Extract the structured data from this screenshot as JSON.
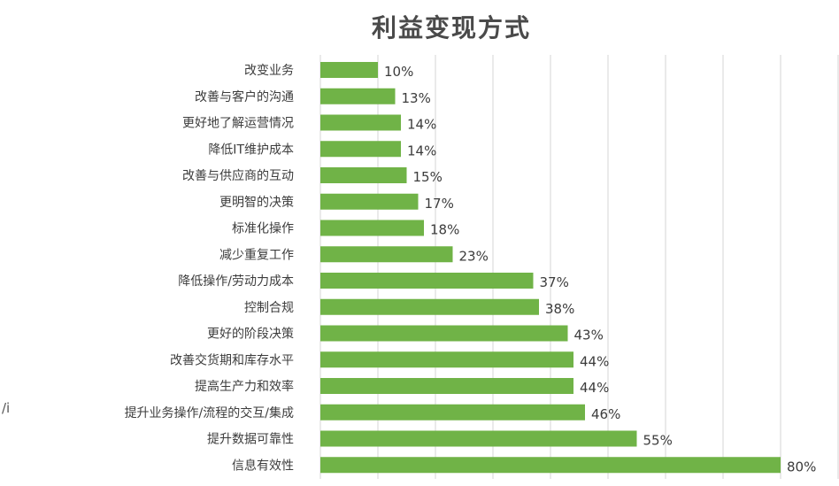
{
  "chart_data": {
    "type": "bar",
    "orientation": "horizontal",
    "title": "利益变现方式",
    "categories": [
      "改变业务",
      "改善与客户的沟通",
      "更好地了解运营情况",
      "降低IT维护成本",
      "改善与供应商的互动",
      "更明智的决策",
      "标准化操作",
      "减少重复工作",
      "降低操作/劳动力成本",
      "控制合规",
      "更好的阶段决策",
      "改善交货期和库存水平",
      "提高生产力和效率",
      "提升业务操作/流程的交互/集成",
      "提升数据可靠性",
      "信息有效性"
    ],
    "values": [
      10,
      13,
      14,
      14,
      15,
      17,
      18,
      23,
      37,
      38,
      43,
      44,
      44,
      46,
      55,
      80
    ],
    "value_labels": [
      "10%",
      "13%",
      "14%",
      "14%",
      "15%",
      "17%",
      "18%",
      "23%",
      "37%",
      "38%",
      "43%",
      "44%",
      "44%",
      "46%",
      "55%",
      "80%"
    ],
    "xlim": [
      0,
      90
    ],
    "grid": true,
    "bar_color": "#70b347",
    "xlabel": "",
    "ylabel": ""
  },
  "stray_text": "/i"
}
